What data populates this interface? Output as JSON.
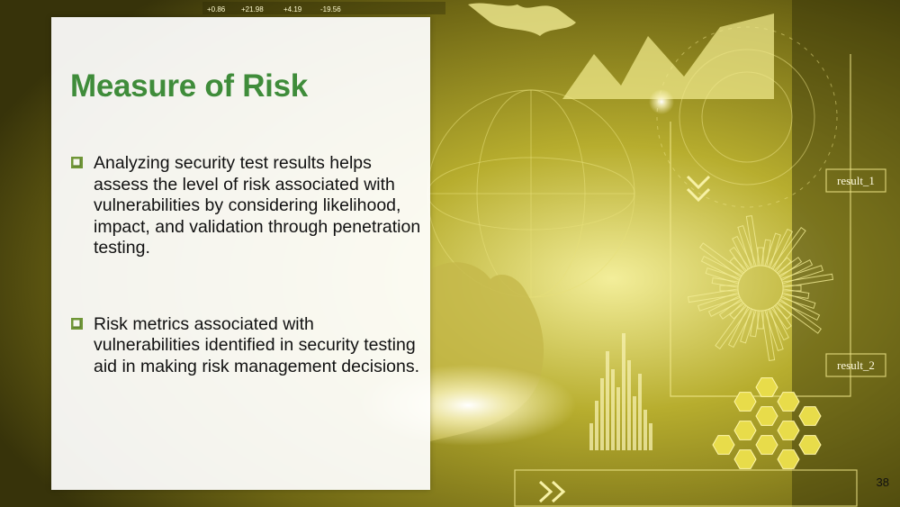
{
  "slide": {
    "title": "Measure of Risk",
    "bullets": [
      {
        "text": "Analyzing security test results helps assess the level of risk associated with vulnerabilities by considering likelihood, impact, and validation through penetration testing.",
        "icon": "hollow-square-bullet-icon"
      },
      {
        "text": "Risk metrics associated with vulnerabilities identified in security testing aid in making risk management decisions.",
        "icon": "hollow-square-bullet-icon"
      }
    ],
    "page_number": "38"
  },
  "background": {
    "labels": [
      "result_1",
      "result_2"
    ],
    "ticker": [
      "+0.86",
      "+21.98",
      "+4.19",
      "-19.56"
    ],
    "colors": {
      "tint": "#c9c032",
      "dark": "#3a3608",
      "title": "#3f8c3a",
      "bullet": "#7aa33a"
    }
  }
}
